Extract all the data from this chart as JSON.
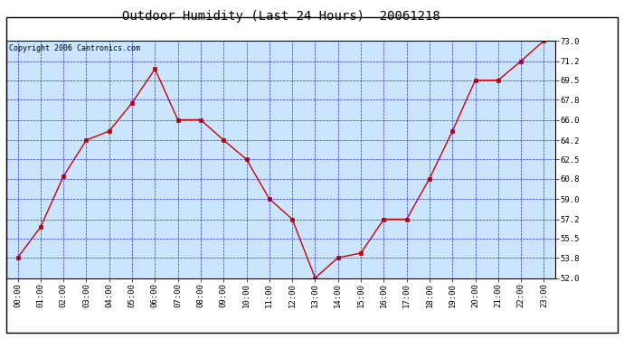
{
  "title": "Outdoor Humidity (Last 24 Hours)  20061218",
  "copyright_text": "Copyright 2006 Cantronics.com",
  "x_labels": [
    "00:00",
    "01:00",
    "02:00",
    "03:00",
    "04:00",
    "05:00",
    "06:00",
    "07:00",
    "08:00",
    "09:00",
    "10:00",
    "11:00",
    "12:00",
    "13:00",
    "14:00",
    "15:00",
    "16:00",
    "17:00",
    "18:00",
    "19:00",
    "20:00",
    "21:00",
    "22:00",
    "23:00"
  ],
  "hours": [
    0,
    1,
    2,
    3,
    4,
    5,
    6,
    7,
    8,
    9,
    10,
    11,
    12,
    13,
    14,
    15,
    16,
    17,
    18,
    19,
    20,
    21,
    22,
    23
  ],
  "values": [
    53.8,
    56.5,
    61.0,
    64.2,
    65.0,
    67.5,
    70.5,
    66.0,
    66.0,
    64.2,
    62.5,
    59.0,
    57.2,
    52.0,
    53.8,
    54.2,
    57.2,
    57.2,
    60.8,
    65.0,
    69.5,
    69.5,
    71.2,
    73.0
  ],
  "ylim": [
    52.0,
    73.0
  ],
  "yticks": [
    52.0,
    53.8,
    55.5,
    57.2,
    59.0,
    60.8,
    62.5,
    64.2,
    66.0,
    67.8,
    69.5,
    71.2,
    73.0
  ],
  "line_color": "#cc0000",
  "marker_color": "#cc0000",
  "bg_color": "#cce5ff",
  "grid_color": "#0000cc",
  "title_color": "#000000",
  "title_fontsize": 10,
  "copyright_fontsize": 6,
  "tick_fontsize": 6.5,
  "axes_label_color": "#000000",
  "fig_bg": "#ffffff",
  "border_color": "#000000"
}
